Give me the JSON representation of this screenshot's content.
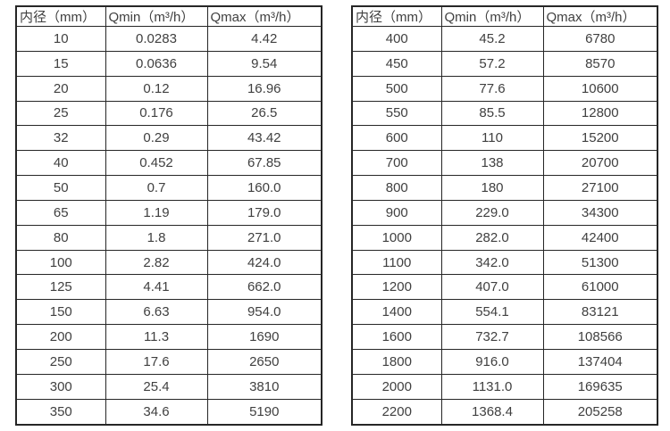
{
  "page": {
    "background": "#ffffff",
    "text_color": "#404040",
    "border_color": "#262626"
  },
  "tables": [
    {
      "name": "flow-spec-table-small-diameters",
      "headers": [
        "内径（mm）",
        "Qmin（m³/h）",
        "Qmax（m³/h）"
      ],
      "rows": [
        [
          "10",
          "0.0283",
          "4.42"
        ],
        [
          "15",
          "0.0636",
          "9.54"
        ],
        [
          "20",
          "0.12",
          "16.96"
        ],
        [
          "25",
          "0.176",
          "26.5"
        ],
        [
          "32",
          "0.29",
          "43.42"
        ],
        [
          "40",
          "0.452",
          "67.85"
        ],
        [
          "50",
          "0.7",
          "160.0"
        ],
        [
          "65",
          "1.19",
          "179.0"
        ],
        [
          "80",
          "1.8",
          "271.0"
        ],
        [
          "100",
          "2.82",
          "424.0"
        ],
        [
          "125",
          "4.41",
          "662.0"
        ],
        [
          "150",
          "6.63",
          "954.0"
        ],
        [
          "200",
          "11.3",
          "1690"
        ],
        [
          "250",
          "17.6",
          "2650"
        ],
        [
          "300",
          "25.4",
          "3810"
        ],
        [
          "350",
          "34.6",
          "5190"
        ]
      ]
    },
    {
      "name": "flow-spec-table-large-diameters",
      "headers": [
        "内径（mm）",
        "Qmin（m³/h）",
        "Qmax（m³/h）"
      ],
      "rows": [
        [
          "400",
          "45.2",
          "6780"
        ],
        [
          "450",
          "57.2",
          "8570"
        ],
        [
          "500",
          "77.6",
          "10600"
        ],
        [
          "550",
          "85.5",
          "12800"
        ],
        [
          "600",
          "110",
          "15200"
        ],
        [
          "700",
          "138",
          "20700"
        ],
        [
          "800",
          "180",
          "27100"
        ],
        [
          "900",
          "229.0",
          "34300"
        ],
        [
          "1000",
          "282.0",
          "42400"
        ],
        [
          "1100",
          "342.0",
          "51300"
        ],
        [
          "1200",
          "407.0",
          "61000"
        ],
        [
          "1400",
          "554.1",
          "83121"
        ],
        [
          "1600",
          "732.7",
          "108566"
        ],
        [
          "1800",
          "916.0",
          "137404"
        ],
        [
          "2000",
          "1131.0",
          "169635"
        ],
        [
          "2200",
          "1368.4",
          "205258"
        ]
      ]
    }
  ]
}
